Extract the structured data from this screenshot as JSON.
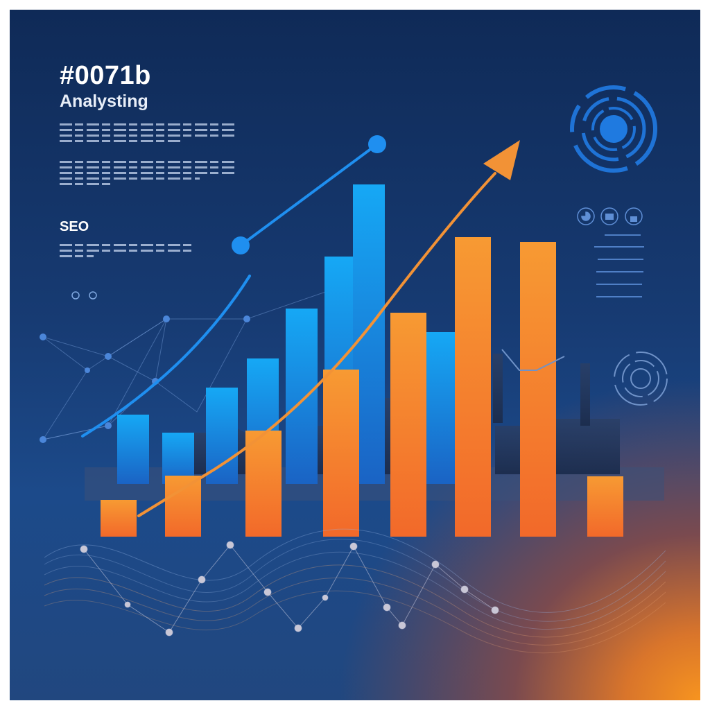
{
  "poster": {
    "headline": "#0071b",
    "subtitle": "Analysting",
    "section_label": "SEO"
  },
  "colors": {
    "navy": "#0f2a57",
    "blue_bar": "#1fa3f0",
    "orange_bar": "#f5892a",
    "accent_orange": "#f7941f"
  },
  "icons": [
    "target-icon",
    "pie-icon",
    "briefcase-icon",
    "lock-icon",
    "radar-icon"
  ]
}
